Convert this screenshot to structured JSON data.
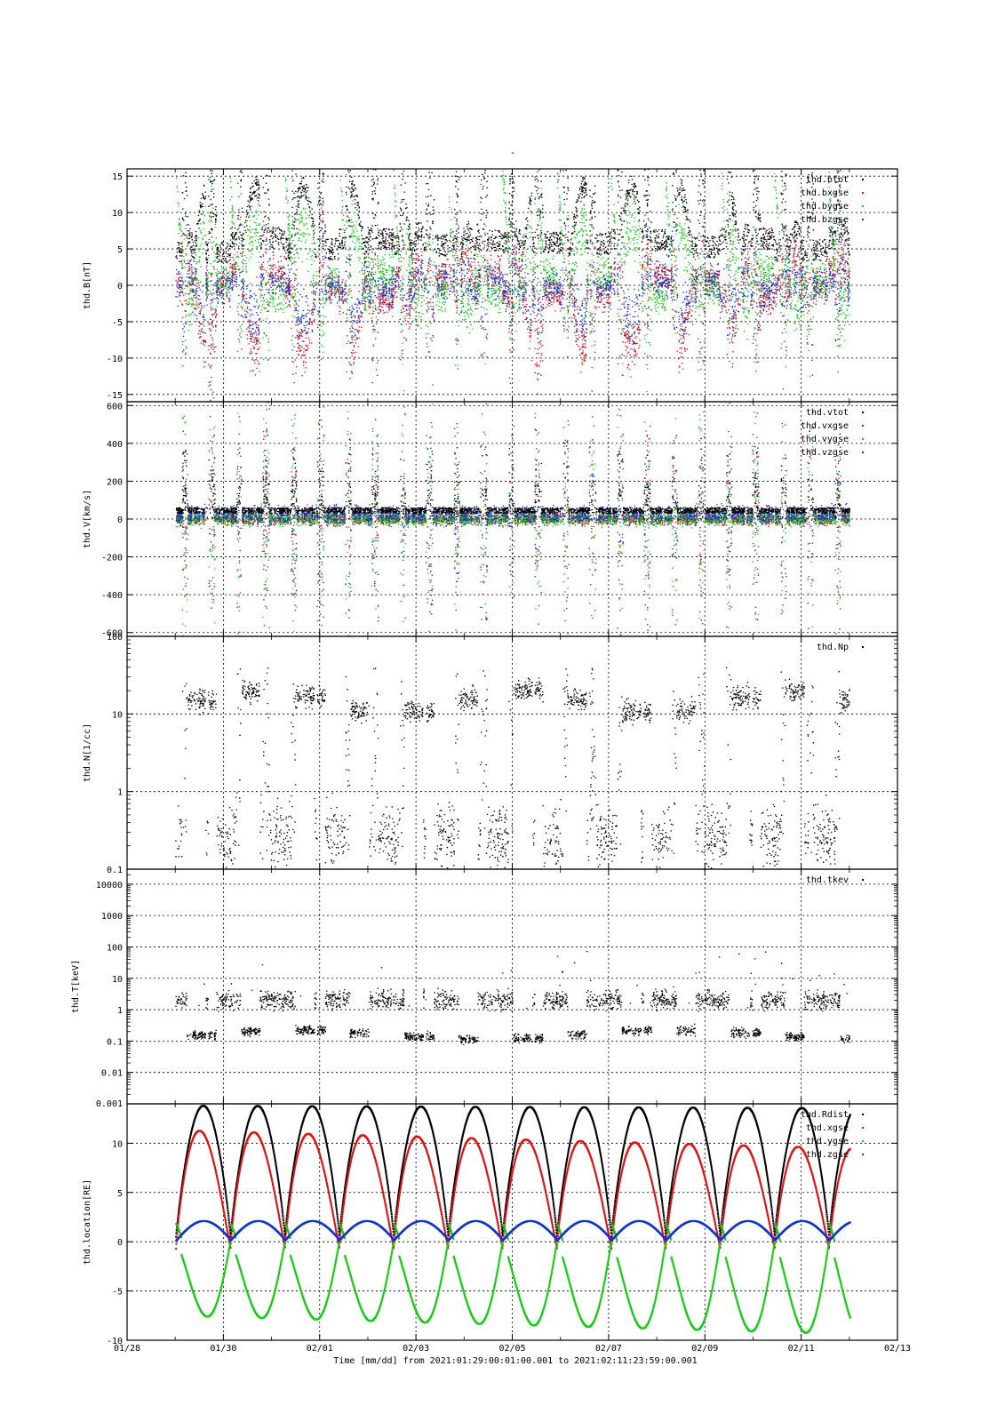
{
  "figure": {
    "title": "-",
    "time_label": "Time [mm/dd]  from 2021:01:29:00:01:00.001  to  2021:02:11:23:59:00.001"
  },
  "colors": {
    "black": "#000000",
    "red": "#dd1111",
    "green": "#11cc11",
    "blue": "#1133cc",
    "grid": "#000000"
  },
  "chart_data": [
    {
      "type": "scatter",
      "ylabel": "thd.B[nT]",
      "ylim": [
        -16,
        16
      ],
      "yticks": [
        -15,
        -10,
        -5,
        0,
        5,
        10,
        15
      ],
      "scale": "linear",
      "grid": true,
      "legend_position": "top-right",
      "x_unit": "days since 2021-01-28",
      "xlim": [
        0,
        16
      ],
      "xtick_values": [
        0,
        2,
        4,
        6,
        8,
        10,
        12,
        14,
        16
      ],
      "xtick_labels": [
        "01/28",
        "01/30",
        "02/01",
        "02/03",
        "02/05",
        "02/07",
        "02/09",
        "02/11",
        "02/13"
      ],
      "series": [
        {
          "name": "thd.btot",
          "color": "black"
        },
        {
          "name": "thd.bxgse",
          "color": "red"
        },
        {
          "name": "thd.bygse",
          "color": "green"
        },
        {
          "name": "thd.bzgse",
          "color": "blue"
        }
      ]
    },
    {
      "type": "scatter",
      "ylabel": "thd.V[km/s]",
      "ylim": [
        -620,
        620
      ],
      "yticks": [
        -600,
        -400,
        -200,
        0,
        200,
        400,
        600
      ],
      "scale": "linear",
      "grid": true,
      "legend_position": "top-right",
      "series": [
        {
          "name": "thd.vtot",
          "color": "black"
        },
        {
          "name": "thd.vxgse",
          "color": "red"
        },
        {
          "name": "thd.vygse",
          "color": "green"
        },
        {
          "name": "thd.vzgse",
          "color": "blue"
        }
      ]
    },
    {
      "type": "scatter",
      "ylabel": "thd.N[1/cc]",
      "ylim": [
        0.1,
        100
      ],
      "yticks": [
        0.1,
        1,
        10,
        100
      ],
      "yticklabels": [
        "0.1",
        "1",
        "10",
        "100"
      ],
      "scale": "log",
      "grid": true,
      "legend_position": "top-right",
      "series": [
        {
          "name": "thd.Np",
          "color": "black"
        }
      ]
    },
    {
      "type": "scatter",
      "ylabel": "thd.T[keV]",
      "ylim": [
        0.001,
        30000
      ],
      "yticks": [
        0.01,
        0.1,
        1,
        10,
        100,
        1000,
        10000
      ],
      "yticklabels": [
        "0.01",
        "0.1",
        "1",
        "10",
        "100",
        "1000",
        "10000"
      ],
      "bottom_tick_label": "0.001",
      "scale": "log",
      "grid": true,
      "legend_position": "top-right",
      "series": [
        {
          "name": "thd.tkev",
          "color": "black"
        }
      ]
    },
    {
      "type": "scatter",
      "ylabel": "thd.location[RE]",
      "ylim": [
        -10,
        14
      ],
      "yticks": [
        -10,
        -5,
        0,
        5,
        10
      ],
      "scale": "linear",
      "grid": true,
      "legend_position": "top-right",
      "series": [
        {
          "name": "thd.Rdist",
          "color": "black"
        },
        {
          "name": "thd.xgse",
          "color": "red"
        },
        {
          "name": "thd.ygse",
          "color": "green"
        },
        {
          "name": "thd.zgse",
          "color": "blue"
        }
      ]
    }
  ]
}
